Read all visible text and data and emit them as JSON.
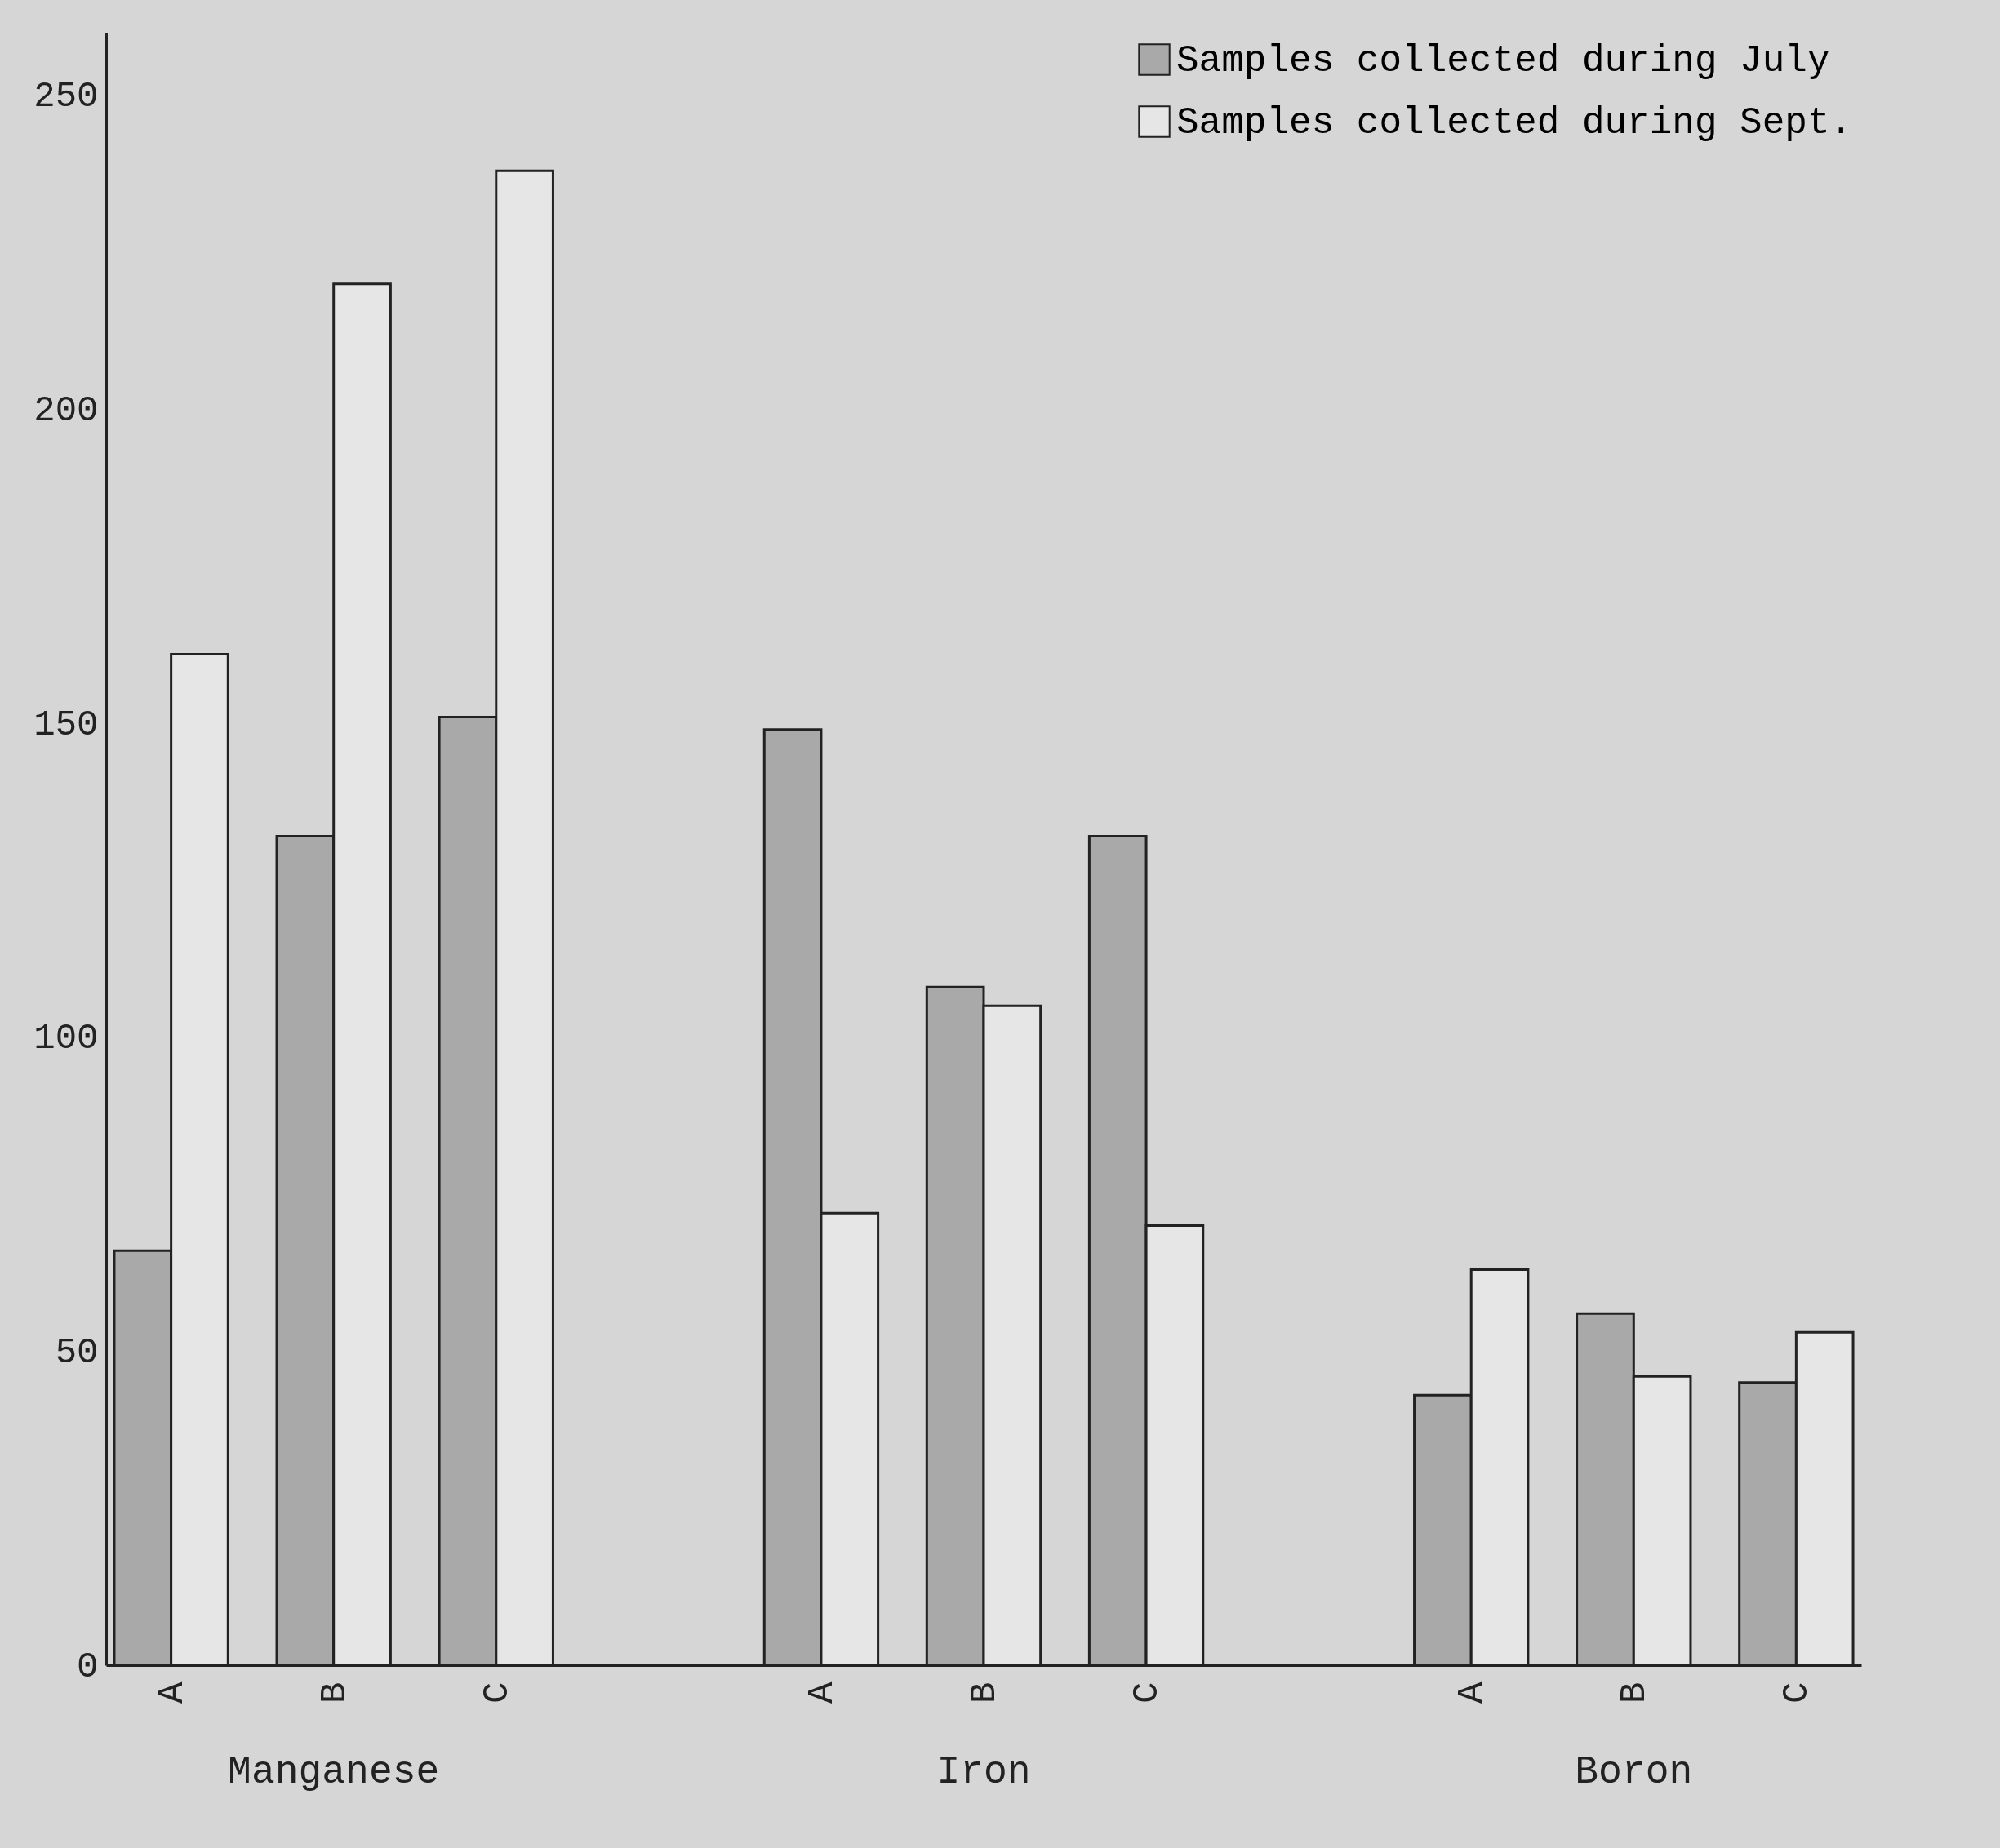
{
  "chart_data": {
    "type": "bar",
    "categories": [
      "A",
      "B",
      "C",
      "A",
      "B",
      "C",
      "A",
      "B",
      "C"
    ],
    "series": [
      {
        "name": "Samples collected during July",
        "color": "#a9a9a9",
        "values": [
          66,
          132,
          151,
          149,
          108,
          132,
          43,
          56,
          45
        ]
      },
      {
        "name": "Samples collected during Sept.",
        "color": "#e6e6e6",
        "values": [
          161,
          220,
          238,
          72,
          105,
          70,
          63,
          46,
          53
        ]
      }
    ],
    "annotations": [
      "Manganese",
      "Iron",
      "Boron"
    ],
    "ylim": [
      0,
      260
    ],
    "yticks": [
      0,
      50,
      100,
      150,
      200,
      250
    ],
    "grid": false,
    "legend": "top right"
  }
}
